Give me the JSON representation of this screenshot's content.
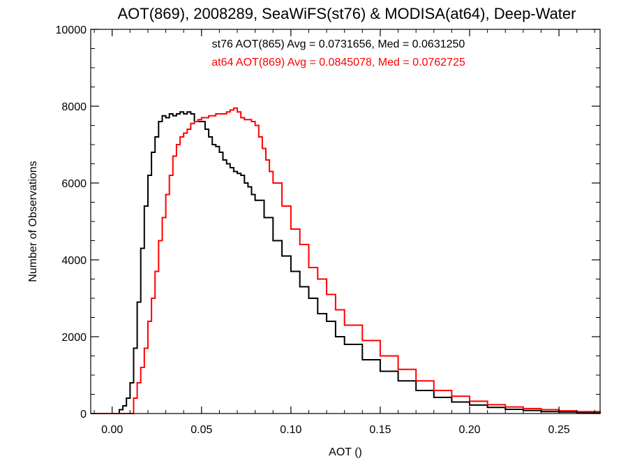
{
  "chart_data": {
    "type": "line",
    "title": "AOT(869), 2008289, SeaWiFS(st76) & MODISA(at64), Deep-Water",
    "xlabel": "AOT ()",
    "ylabel": "Number of Observations",
    "xlim": [
      -0.012,
      0.273
    ],
    "ylim": [
      0,
      10000
    ],
    "x_ticks": [
      0.0,
      0.05,
      0.1,
      0.15,
      0.2,
      0.25
    ],
    "x_tick_labels": [
      "0.00",
      "0.05",
      "0.10",
      "0.15",
      "0.20",
      "0.25"
    ],
    "y_ticks": [
      0,
      2000,
      4000,
      6000,
      8000,
      10000
    ],
    "y_tick_labels": [
      "0",
      "2000",
      "4000",
      "6000",
      "8000",
      "10000"
    ],
    "step_style": "histogram",
    "grid": false,
    "annotations": [
      {
        "text": "st76 AOT(865) Avg = 0.0731656, Med = 0.0631250",
        "color": "#000000"
      },
      {
        "text": "at64 AOT(869) Avg = 0.0845078, Med = 0.0762725",
        "color": "#ff0000"
      }
    ],
    "series": [
      {
        "color": "#000000",
        "x": [
          -0.012,
          0.0,
          0.004,
          0.006,
          0.008,
          0.01,
          0.012,
          0.014,
          0.016,
          0.018,
          0.02,
          0.022,
          0.024,
          0.026,
          0.028,
          0.03,
          0.032,
          0.034,
          0.036,
          0.038,
          0.04,
          0.042,
          0.044,
          0.046,
          0.048,
          0.05,
          0.052,
          0.054,
          0.056,
          0.058,
          0.06,
          0.062,
          0.064,
          0.066,
          0.068,
          0.07,
          0.072,
          0.074,
          0.076,
          0.078,
          0.08,
          0.085,
          0.09,
          0.095,
          0.1,
          0.105,
          0.11,
          0.115,
          0.12,
          0.125,
          0.13,
          0.14,
          0.15,
          0.16,
          0.17,
          0.18,
          0.19,
          0.2,
          0.21,
          0.22,
          0.23,
          0.24,
          0.25,
          0.26,
          0.273
        ],
        "y": [
          0,
          0,
          100,
          200,
          400,
          800,
          1700,
          2900,
          4300,
          5400,
          6200,
          6800,
          7200,
          7600,
          7750,
          7700,
          7800,
          7750,
          7800,
          7850,
          7800,
          7850,
          7800,
          7600,
          7600,
          7600,
          7400,
          7200,
          7000,
          6950,
          6800,
          6600,
          6500,
          6400,
          6300,
          6250,
          6200,
          6000,
          5900,
          5700,
          5550,
          5100,
          4500,
          4100,
          3700,
          3300,
          3000,
          2600,
          2400,
          2000,
          1800,
          1400,
          1100,
          850,
          600,
          420,
          300,
          220,
          160,
          110,
          80,
          50,
          40,
          20,
          0
        ]
      },
      {
        "color": "#ff0000",
        "x": [
          -0.012,
          0.01,
          0.012,
          0.014,
          0.016,
          0.018,
          0.02,
          0.022,
          0.024,
          0.026,
          0.028,
          0.03,
          0.032,
          0.034,
          0.036,
          0.038,
          0.04,
          0.042,
          0.044,
          0.046,
          0.048,
          0.05,
          0.052,
          0.054,
          0.056,
          0.058,
          0.06,
          0.062,
          0.064,
          0.066,
          0.068,
          0.07,
          0.072,
          0.074,
          0.076,
          0.078,
          0.08,
          0.082,
          0.084,
          0.086,
          0.088,
          0.09,
          0.095,
          0.1,
          0.105,
          0.11,
          0.115,
          0.12,
          0.125,
          0.13,
          0.14,
          0.15,
          0.16,
          0.17,
          0.18,
          0.19,
          0.2,
          0.21,
          0.22,
          0.23,
          0.24,
          0.25,
          0.26,
          0.273
        ],
        "y": [
          0,
          0,
          400,
          800,
          1200,
          1700,
          2400,
          3000,
          3700,
          4500,
          5100,
          5700,
          6200,
          6700,
          7000,
          7200,
          7300,
          7400,
          7550,
          7600,
          7650,
          7700,
          7700,
          7750,
          7750,
          7800,
          7800,
          7800,
          7850,
          7900,
          7950,
          7850,
          7700,
          7650,
          7650,
          7600,
          7500,
          7200,
          6900,
          6600,
          6300,
          6000,
          5400,
          4800,
          4400,
          3800,
          3500,
          3100,
          2700,
          2300,
          1900,
          1500,
          1150,
          850,
          600,
          450,
          320,
          230,
          170,
          130,
          100,
          70,
          50,
          40
        ]
      }
    ]
  }
}
